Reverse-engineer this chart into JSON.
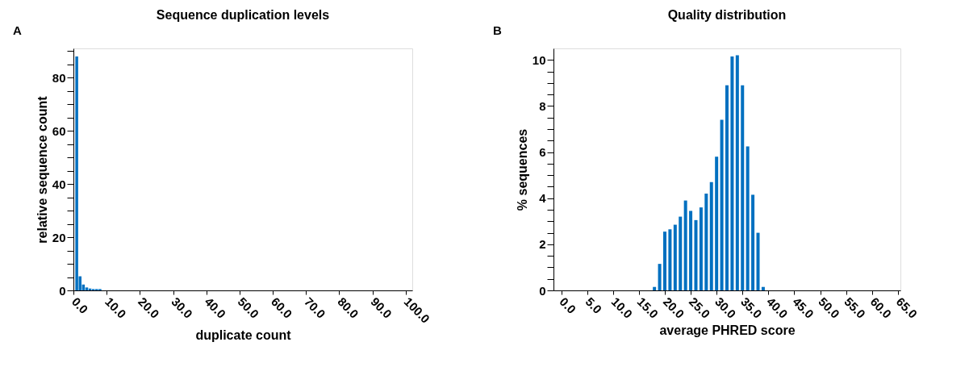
{
  "chart_data": [
    {
      "type": "bar",
      "title": "Sequence duplication levels",
      "xlabel": "duplicate count",
      "ylabel": "relative sequence count",
      "annotations": [
        "A"
      ],
      "x": [
        1,
        2,
        3,
        4,
        5,
        6,
        7,
        8
      ],
      "values": [
        88,
        5.3,
        2.2,
        1.1,
        0.7,
        0.5,
        0.5,
        0.5
      ],
      "color": "#0070c0",
      "xlim": [
        0,
        102
      ],
      "xticks": [
        {
          "value": 0,
          "label": "0.0"
        },
        {
          "value": 10,
          "label": "10.0"
        },
        {
          "value": 20,
          "label": "20.0"
        },
        {
          "value": 30,
          "label": "30.0"
        },
        {
          "value": 40,
          "label": "40.0"
        },
        {
          "value": 50,
          "label": "50.0"
        },
        {
          "value": 60,
          "label": "60.0"
        },
        {
          "value": 70,
          "label": "70.0"
        },
        {
          "value": 80,
          "label": "80.0"
        },
        {
          "value": 90,
          "label": "90.0"
        },
        {
          "value": 100,
          "label": "100.0"
        }
      ],
      "ylim": [
        0,
        91
      ],
      "yticks": [
        0,
        {
          "value": 5,
          "label": null
        },
        {
          "value": 10,
          "label": null
        },
        {
          "value": 15,
          "label": null
        },
        20,
        {
          "value": 25,
          "label": null
        },
        {
          "value": 30,
          "label": null
        },
        {
          "value": 35,
          "label": null
        },
        40,
        {
          "value": 45,
          "label": null
        },
        {
          "value": 50,
          "label": null
        },
        {
          "value": 55,
          "label": null
        },
        60,
        {
          "value": 65,
          "label": null
        },
        {
          "value": 70,
          "label": null
        },
        {
          "value": 75,
          "label": null
        },
        80,
        {
          "value": 85,
          "label": null
        },
        {
          "value": 90,
          "label": null
        }
      ],
      "grid": false
    },
    {
      "type": "bar",
      "title": "Quality distribution",
      "xlabel": "average PHRED score",
      "ylabel": "% sequences",
      "annotations": [
        "B"
      ],
      "x": [
        18,
        19,
        20,
        21,
        22,
        23,
        24,
        25,
        26,
        27,
        28,
        29,
        30,
        31,
        32,
        33,
        34,
        35,
        36,
        37,
        38,
        39
      ],
      "values": [
        0.15,
        1.15,
        2.55,
        2.65,
        2.85,
        3.2,
        3.9,
        3.45,
        3.05,
        3.6,
        4.2,
        4.7,
        5.8,
        7.4,
        8.9,
        10.15,
        10.2,
        8.9,
        6.25,
        4.15,
        2.5,
        0.15
      ],
      "color": "#0070c0",
      "xlim": [
        -1.5,
        65.5
      ],
      "xticks": [
        {
          "value": 0,
          "label": "0.0"
        },
        {
          "value": 5,
          "label": "5.0"
        },
        {
          "value": 10,
          "label": "10.0"
        },
        {
          "value": 15,
          "label": "15.0"
        },
        {
          "value": 20,
          "label": "20.0"
        },
        {
          "value": 25,
          "label": "25.0"
        },
        {
          "value": 30,
          "label": "30.0"
        },
        {
          "value": 35,
          "label": "35.0"
        },
        {
          "value": 40,
          "label": "40.0"
        },
        {
          "value": 45,
          "label": "45.0"
        },
        {
          "value": 50,
          "label": "50.0"
        },
        {
          "value": 55,
          "label": "55.0"
        },
        {
          "value": 60,
          "label": "60.0"
        },
        {
          "value": 65,
          "label": "65.0"
        }
      ],
      "ylim": [
        0,
        10.5
      ],
      "yticks": [
        0,
        {
          "value": 0.5,
          "label": null
        },
        {
          "value": 1,
          "label": null
        },
        {
          "value": 1.5,
          "label": null
        },
        2,
        {
          "value": 2.5,
          "label": null
        },
        {
          "value": 3,
          "label": null
        },
        {
          "value": 3.5,
          "label": null
        },
        4,
        {
          "value": 4.5,
          "label": null
        },
        {
          "value": 5,
          "label": null
        },
        {
          "value": 5.5,
          "label": null
        },
        6,
        {
          "value": 6.5,
          "label": null
        },
        {
          "value": 7,
          "label": null
        },
        {
          "value": 7.5,
          "label": null
        },
        8,
        {
          "value": 8.5,
          "label": null
        },
        {
          "value": 9,
          "label": null
        },
        {
          "value": 9.5,
          "label": null
        },
        10
      ],
      "grid": false
    }
  ]
}
